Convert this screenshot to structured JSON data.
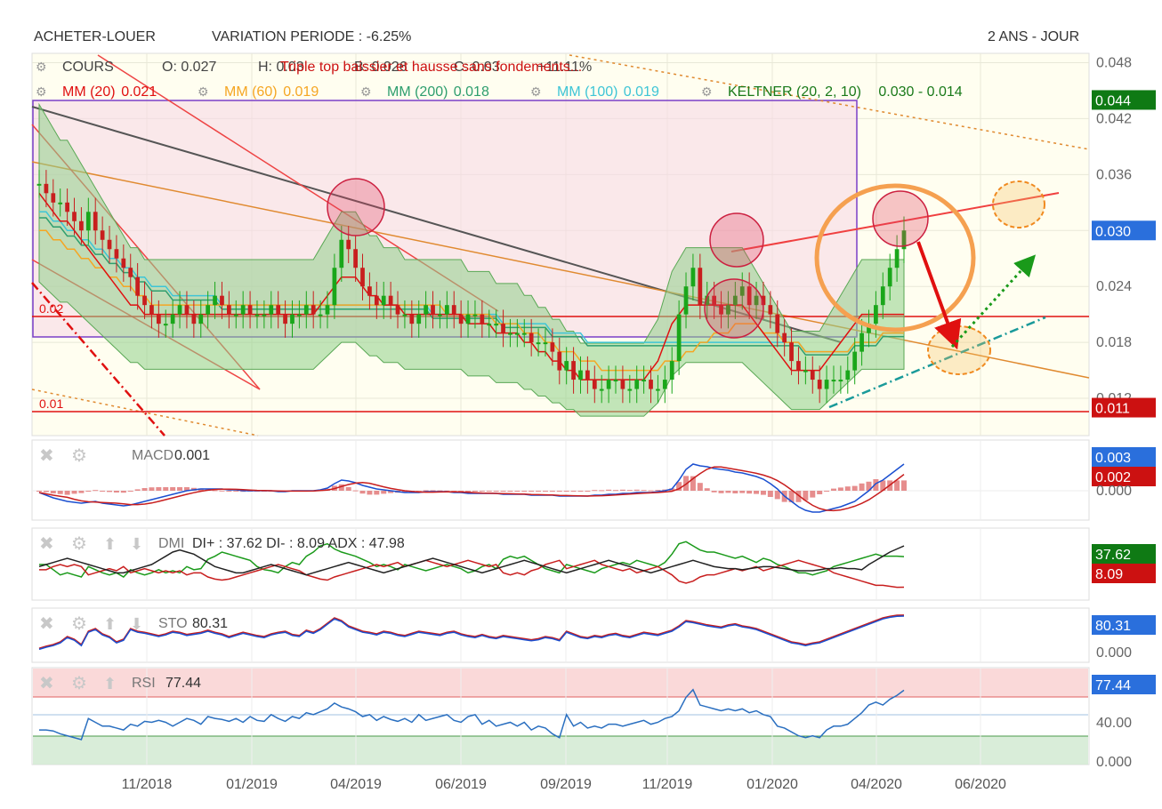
{
  "header": {
    "left_label": "ACHETER-LOUER",
    "variation": "VARIATION PERIODE : -6.25%",
    "period": "2 ANS - JOUR"
  },
  "main_legend": {
    "cours": "COURS",
    "open": "O: 0.027",
    "high": "H: 0.03",
    "low": "B: 0.026",
    "close": "C: 0.03",
    "volume": "+11.11%",
    "annotation": "Triple top baissier et hausse sans fondements..."
  },
  "indicator_legend": [
    {
      "label": "MM (20)",
      "value": "0.021",
      "color": "#e01010"
    },
    {
      "label": "MM (60)",
      "value": "0.019",
      "color": "#f5a623"
    },
    {
      "label": "MM (200)",
      "value": "0.018",
      "color": "#2e9e6e"
    },
    {
      "label": "MM (100)",
      "value": "0.019",
      "color": "#3ec5d6"
    },
    {
      "label": "KELTNER (20, 2, 10)",
      "value": "0.030 - 0.014",
      "color": "#1a7a1a"
    }
  ],
  "price_axis": {
    "ticks": [
      "0.048",
      "0.042",
      "0.036",
      "0.030",
      "0.024",
      "0.018",
      "0.012"
    ],
    "badges": [
      {
        "text": "0.044",
        "value": 0.044,
        "color": "#0f7a14"
      },
      {
        "text": "0.030",
        "value": 0.03,
        "color": "#2a6fdc"
      },
      {
        "text": "0.011",
        "value": 0.011,
        "color": "#cc1111"
      }
    ],
    "level_labels": [
      {
        "text": "0.02",
        "value": 0.021
      },
      {
        "text": "0.01",
        "value": 0.011
      }
    ]
  },
  "x_axis": {
    "labels": [
      "11/2018",
      "01/2019",
      "04/2019",
      "06/2019",
      "09/2019",
      "11/2019",
      "01/2020",
      "04/2020",
      "06/2020"
    ]
  },
  "panels": {
    "macd": {
      "label": "MACD",
      "value": "0.001",
      "badges": [
        {
          "text": "0.003",
          "color": "#2a6fdc"
        },
        {
          "text": "0.002",
          "color": "#cc1111"
        }
      ],
      "ticks": [
        "0.000"
      ]
    },
    "dmi": {
      "label": "DMI",
      "value": "DI+ : 37.62 DI- : 8.09 ADX : 47.98",
      "badges": [
        {
          "text": "37.62",
          "color": "#0f7a14"
        },
        {
          "text": "8.09",
          "color": "#cc1111"
        }
      ],
      "ticks": []
    },
    "sto": {
      "label": "STO",
      "value": "80.31",
      "badges": [
        {
          "text": "80.31",
          "color": "#2a6fdc"
        }
      ],
      "ticks": [
        "0.000"
      ]
    },
    "rsi": {
      "label": "RSI",
      "value": "77.44",
      "badges": [
        {
          "text": "77.44",
          "color": "#2a6fdc"
        }
      ],
      "ticks": [
        "40.00",
        "0.000"
      ]
    }
  },
  "chart_data": {
    "type": "line",
    "price_range": [
      0.008,
      0.049
    ],
    "close": [
      0.035,
      0.034,
      0.033,
      0.033,
      0.032,
      0.031,
      0.03,
      0.032,
      0.03,
      0.029,
      0.028,
      0.027,
      0.026,
      0.025,
      0.023,
      0.022,
      0.021,
      0.02,
      0.02,
      0.021,
      0.022,
      0.021,
      0.02,
      0.021,
      0.022,
      0.023,
      0.022,
      0.021,
      0.021,
      0.022,
      0.021,
      0.021,
      0.021,
      0.022,
      0.021,
      0.02,
      0.021,
      0.021,
      0.022,
      0.021,
      0.021,
      0.022,
      0.026,
      0.029,
      0.028,
      0.026,
      0.024,
      0.023,
      0.022,
      0.023,
      0.022,
      0.021,
      0.021,
      0.02,
      0.021,
      0.022,
      0.021,
      0.021,
      0.022,
      0.021,
      0.02,
      0.021,
      0.021,
      0.02,
      0.02,
      0.02,
      0.019,
      0.019,
      0.019,
      0.019,
      0.018,
      0.018,
      0.018,
      0.017,
      0.015,
      0.016,
      0.014,
      0.015,
      0.014,
      0.013,
      0.013,
      0.014,
      0.014,
      0.013,
      0.013,
      0.014,
      0.014,
      0.013,
      0.013,
      0.014,
      0.016,
      0.021,
      0.024,
      0.026,
      0.022,
      0.023,
      0.022,
      0.021,
      0.022,
      0.023,
      0.024,
      0.022,
      0.023,
      0.022,
      0.021,
      0.019,
      0.018,
      0.016,
      0.015,
      0.015,
      0.014,
      0.013,
      0.014,
      0.014,
      0.014,
      0.015,
      0.017,
      0.019,
      0.02,
      0.022,
      0.024,
      0.026,
      0.028,
      0.03
    ],
    "mm20": [
      0.034,
      0.033,
      0.032,
      0.031,
      0.031,
      0.03,
      0.029,
      0.028,
      0.027,
      0.026,
      0.025,
      0.024,
      0.023,
      0.022,
      0.022,
      0.021,
      0.021,
      0.021,
      0.021,
      0.021,
      0.021,
      0.021,
      0.021,
      0.021,
      0.021,
      0.021,
      0.021,
      0.021,
      0.021,
      0.021,
      0.021,
      0.021,
      0.021,
      0.021,
      0.021,
      0.021,
      0.021,
      0.021,
      0.021,
      0.021,
      0.022,
      0.023,
      0.024,
      0.025,
      0.025,
      0.025,
      0.024,
      0.023,
      0.023,
      0.022,
      0.022,
      0.022,
      0.021,
      0.021,
      0.021,
      0.021,
      0.021,
      0.021,
      0.021,
      0.021,
      0.021,
      0.02,
      0.02,
      0.02,
      0.02,
      0.019,
      0.019,
      0.019,
      0.019,
      0.018,
      0.018,
      0.017,
      0.017,
      0.016,
      0.016,
      0.015,
      0.015,
      0.014,
      0.014,
      0.014,
      0.014,
      0.014,
      0.014,
      0.014,
      0.014,
      0.014,
      0.014,
      0.015,
      0.016,
      0.018,
      0.02,
      0.021,
      0.022,
      0.022,
      0.022,
      0.022,
      0.022,
      0.022,
      0.022,
      0.022,
      0.022,
      0.021,
      0.02,
      0.019,
      0.018,
      0.017,
      0.016,
      0.015,
      0.015,
      0.015,
      0.015,
      0.015,
      0.016,
      0.017,
      0.018,
      0.019,
      0.02,
      0.021,
      0.021,
      0.021,
      0.021,
      0.021,
      0.021,
      0.021
    ],
    "mm60": [
      0.03,
      0.03,
      0.029,
      0.029,
      0.028,
      0.028,
      0.027,
      0.027,
      0.026,
      0.026,
      0.025,
      0.025,
      0.024,
      0.024,
      0.023,
      0.023,
      0.022,
      0.022,
      0.022,
      0.022,
      0.022,
      0.022,
      0.022,
      0.022,
      0.022,
      0.022,
      0.022,
      0.022,
      0.022,
      0.022,
      0.022,
      0.022,
      0.022,
      0.022,
      0.022,
      0.022,
      0.022,
      0.022,
      0.022,
      0.022,
      0.022,
      0.022,
      0.022,
      0.022,
      0.022,
      0.022,
      0.022,
      0.022,
      0.022,
      0.022,
      0.022,
      0.022,
      0.022,
      0.022,
      0.022,
      0.022,
      0.022,
      0.022,
      0.021,
      0.021,
      0.021,
      0.021,
      0.021,
      0.021,
      0.021,
      0.02,
      0.02,
      0.02,
      0.02,
      0.019,
      0.019,
      0.019,
      0.018,
      0.018,
      0.017,
      0.017,
      0.017,
      0.016,
      0.016,
      0.016,
      0.015,
      0.015,
      0.015,
      0.015,
      0.015,
      0.015,
      0.015,
      0.015,
      0.015,
      0.016,
      0.016,
      0.016,
      0.017,
      0.017,
      0.018,
      0.018,
      0.019,
      0.019,
      0.019,
      0.02,
      0.02,
      0.02,
      0.02,
      0.019,
      0.019,
      0.019,
      0.018,
      0.018,
      0.018,
      0.017,
      0.017,
      0.017,
      0.017,
      0.017,
      0.017,
      0.017,
      0.018,
      0.018,
      0.018,
      0.018,
      0.019,
      0.019,
      0.019,
      0.019
    ],
    "mm100": [
      0.032,
      0.032,
      0.031,
      0.031,
      0.03,
      0.03,
      0.029,
      0.029,
      0.028,
      0.028,
      0.027,
      0.027,
      0.026,
      0.026,
      0.025,
      0.025,
      0.024,
      0.024,
      0.024,
      0.023,
      0.023,
      0.023,
      0.023,
      0.023,
      0.023,
      0.023,
      0.022,
      0.022,
      0.022,
      0.022,
      0.022,
      0.022,
      0.022,
      0.022,
      0.022,
      0.022,
      0.022,
      0.022,
      0.022,
      0.022,
      0.022,
      0.022,
      0.022,
      0.022,
      0.022,
      0.022,
      0.022,
      0.022,
      0.022,
      0.022,
      0.022,
      0.022,
      0.022,
      0.022,
      0.022,
      0.022,
      0.021,
      0.021,
      0.021,
      0.021,
      0.021,
      0.021,
      0.021,
      0.021,
      0.021,
      0.021,
      0.02,
      0.02,
      0.02,
      0.02,
      0.02,
      0.02,
      0.02,
      0.019,
      0.019,
      0.019,
      0.019,
      0.019,
      0.018,
      0.018,
      0.018,
      0.018,
      0.018,
      0.018,
      0.018,
      0.018,
      0.018,
      0.018,
      0.018,
      0.018,
      0.018,
      0.018,
      0.018,
      0.018,
      0.018,
      0.018,
      0.018,
      0.018,
      0.018,
      0.018,
      0.018,
      0.018,
      0.018,
      0.018,
      0.018,
      0.018,
      0.018,
      0.018,
      0.018,
      0.017,
      0.017,
      0.017,
      0.017,
      0.017,
      0.017,
      0.017,
      0.018,
      0.018,
      0.018,
      0.018,
      0.019,
      0.019,
      0.019,
      0.019
    ],
    "macd": [
      -0.0002,
      -0.0005,
      -0.0008,
      -0.001,
      -0.0012,
      -0.0013,
      -0.0014,
      -0.0013,
      -0.0012,
      -0.0014,
      -0.0015,
      -0.0016,
      -0.0017,
      -0.0016,
      -0.0014,
      -0.0012,
      -0.001,
      -0.0008,
      -0.0006,
      -0.0004,
      -0.0002,
      0,
      0.0001,
      0.0002,
      0.0002,
      0.0002,
      0.0002,
      0.0001,
      0.0001,
      0,
      0,
      0,
      0,
      0,
      -0.0001,
      -0.0001,
      0,
      0,
      0,
      0,
      0.0001,
      0.0003,
      0.0008,
      0.0012,
      0.0011,
      0.0009,
      0.0006,
      0.0004,
      0.0002,
      0.0001,
      0,
      -0.0001,
      -0.0002,
      -0.0002,
      -0.0002,
      -0.0001,
      -0.0001,
      -0.0001,
      -0.0001,
      -0.0002,
      -0.0002,
      -0.0003,
      -0.0003,
      -0.0003,
      -0.0003,
      -0.0003,
      -0.0004,
      -0.0004,
      -0.0004,
      -0.0004,
      -0.0005,
      -0.0005,
      -0.0005,
      -0.0005,
      -0.0006,
      -0.0006,
      -0.0006,
      -0.0006,
      -0.0006,
      -0.0005,
      -0.0005,
      -0.0004,
      -0.0004,
      -0.0003,
      -0.0003,
      -0.0002,
      -0.0002,
      -0.0002,
      -0.0001,
      0,
      0.0002,
      0.0012,
      0.0024,
      0.003,
      0.0028,
      0.0027,
      0.0025,
      0.0024,
      0.0023,
      0.0021,
      0.002,
      0.0018,
      0.0016,
      0.0013,
      0.0008,
      0.0002,
      -0.0006,
      -0.0012,
      -0.0018,
      -0.0022,
      -0.0024,
      -0.0024,
      -0.0022,
      -0.002,
      -0.0018,
      -0.0015,
      -0.0012,
      -0.0006,
      0,
      0.0008,
      0.0012,
      0.0018,
      0.0024,
      0.003
    ],
    "rsi": [
      36,
      36,
      35,
      32,
      30,
      28,
      26,
      48,
      44,
      40,
      40,
      38,
      36,
      42,
      40,
      45,
      44,
      46,
      44,
      40,
      44,
      48,
      46,
      42,
      50,
      48,
      47,
      45,
      48,
      44,
      50,
      46,
      45,
      52,
      48,
      45,
      50,
      48,
      54,
      52,
      55,
      58,
      64,
      60,
      58,
      55,
      50,
      52,
      46,
      50,
      47,
      45,
      48,
      44,
      52,
      46,
      48,
      50,
      52,
      46,
      44,
      50,
      52,
      42,
      46,
      40,
      42,
      44,
      40,
      44,
      36,
      40,
      38,
      32,
      28,
      52,
      40,
      44,
      38,
      40,
      38,
      42,
      42,
      40,
      42,
      44,
      46,
      42,
      44,
      48,
      50,
      56,
      70,
      78,
      62,
      60,
      58,
      56,
      58,
      56,
      58,
      54,
      56,
      52,
      50,
      40,
      38,
      34,
      30,
      28,
      30,
      28,
      36,
      40,
      40,
      42,
      48,
      54,
      62,
      65,
      62,
      68,
      72,
      77.44
    ],
    "sto": [
      18,
      22,
      25,
      30,
      40,
      35,
      25,
      50,
      55,
      45,
      40,
      30,
      35,
      55,
      50,
      48,
      45,
      42,
      45,
      50,
      48,
      44,
      46,
      48,
      52,
      48,
      45,
      40,
      44,
      48,
      45,
      42,
      40,
      45,
      48,
      50,
      44,
      42,
      52,
      48,
      55,
      65,
      75,
      70,
      60,
      55,
      50,
      48,
      45,
      50,
      48,
      44,
      42,
      46,
      50,
      48,
      46,
      44,
      48,
      50,
      45,
      42,
      40,
      44,
      40,
      38,
      42,
      40,
      38,
      36,
      34,
      36,
      40,
      38,
      34,
      50,
      45,
      40,
      38,
      42,
      40,
      44,
      46,
      42,
      40,
      44,
      48,
      46,
      44,
      48,
      52,
      60,
      70,
      68,
      65,
      62,
      60,
      58,
      62,
      64,
      60,
      58,
      55,
      50,
      45,
      40,
      35,
      30,
      28,
      25,
      28,
      30,
      35,
      40,
      45,
      50,
      55,
      60,
      65,
      70,
      75,
      78,
      80,
      80.31
    ],
    "di_plus": [
      30,
      30,
      25,
      20,
      22,
      20,
      18,
      28,
      25,
      22,
      20,
      22,
      18,
      25,
      22,
      20,
      22,
      25,
      22,
      24,
      22,
      28,
      25,
      26,
      35,
      38,
      42,
      40,
      38,
      36,
      34,
      28,
      25,
      24,
      22,
      28,
      32,
      30,
      38,
      42,
      48,
      50,
      45,
      42,
      40,
      38,
      35,
      32,
      28,
      30,
      28,
      25,
      30,
      28,
      26,
      24,
      26,
      28,
      30,
      28,
      26,
      22,
      24,
      28,
      30,
      26,
      35,
      38,
      36,
      38,
      34,
      30,
      26,
      24,
      22,
      30,
      28,
      26,
      24,
      22,
      26,
      28,
      30,
      32,
      30,
      34,
      32,
      30,
      28,
      32,
      40,
      50,
      52,
      48,
      44,
      42,
      42,
      40,
      38,
      36,
      38,
      35,
      32,
      36,
      34,
      30,
      28,
      25,
      22,
      22,
      20,
      22,
      24,
      28,
      30,
      32,
      34,
      36,
      38,
      40,
      38,
      38,
      38,
      37.62
    ],
    "di_minus": [
      25,
      25,
      28,
      30,
      28,
      30,
      28,
      20,
      22,
      24,
      26,
      24,
      28,
      22,
      24,
      26,
      24,
      22,
      24,
      22,
      24,
      20,
      22,
      22,
      18,
      16,
      15,
      16,
      18,
      20,
      22,
      24,
      26,
      28,
      30,
      28,
      26,
      24,
      20,
      18,
      16,
      15,
      18,
      20,
      22,
      24,
      26,
      28,
      30,
      28,
      30,
      32,
      28,
      30,
      32,
      34,
      32,
      30,
      28,
      30,
      32,
      34,
      32,
      30,
      28,
      30,
      22,
      20,
      22,
      20,
      24,
      26,
      30,
      32,
      34,
      26,
      28,
      30,
      32,
      34,
      30,
      28,
      26,
      24,
      26,
      22,
      24,
      26,
      28,
      24,
      20,
      14,
      12,
      14,
      18,
      20,
      20,
      22,
      24,
      26,
      24,
      26,
      28,
      24,
      26,
      28,
      30,
      32,
      34,
      32,
      30,
      28,
      26,
      22,
      20,
      18,
      16,
      14,
      12,
      10,
      10,
      9,
      8,
      8.09
    ],
    "adx": [
      28,
      30,
      32,
      34,
      36,
      34,
      32,
      30,
      28,
      26,
      24,
      22,
      22,
      24,
      26,
      28,
      30,
      34,
      38,
      42,
      44,
      42,
      40,
      36,
      32,
      28,
      26,
      24,
      22,
      22,
      24,
      26,
      28,
      30,
      28,
      26,
      24,
      22,
      20,
      22,
      24,
      26,
      28,
      30,
      32,
      30,
      28,
      26,
      24,
      22,
      24,
      26,
      28,
      30,
      32,
      34,
      36,
      34,
      32,
      30,
      28,
      26,
      24,
      22,
      24,
      26,
      28,
      30,
      32,
      34,
      32,
      30,
      28,
      26,
      24,
      22,
      24,
      26,
      28,
      30,
      32,
      34,
      32,
      30,
      28,
      26,
      24,
      22,
      24,
      26,
      28,
      30,
      32,
      34,
      32,
      30,
      28,
      27,
      26,
      26,
      25,
      26,
      27,
      28,
      28,
      27,
      26,
      25,
      24,
      24,
      24,
      25,
      26,
      26,
      27,
      26,
      26,
      25,
      30,
      34,
      38,
      42,
      45,
      47.98
    ]
  }
}
